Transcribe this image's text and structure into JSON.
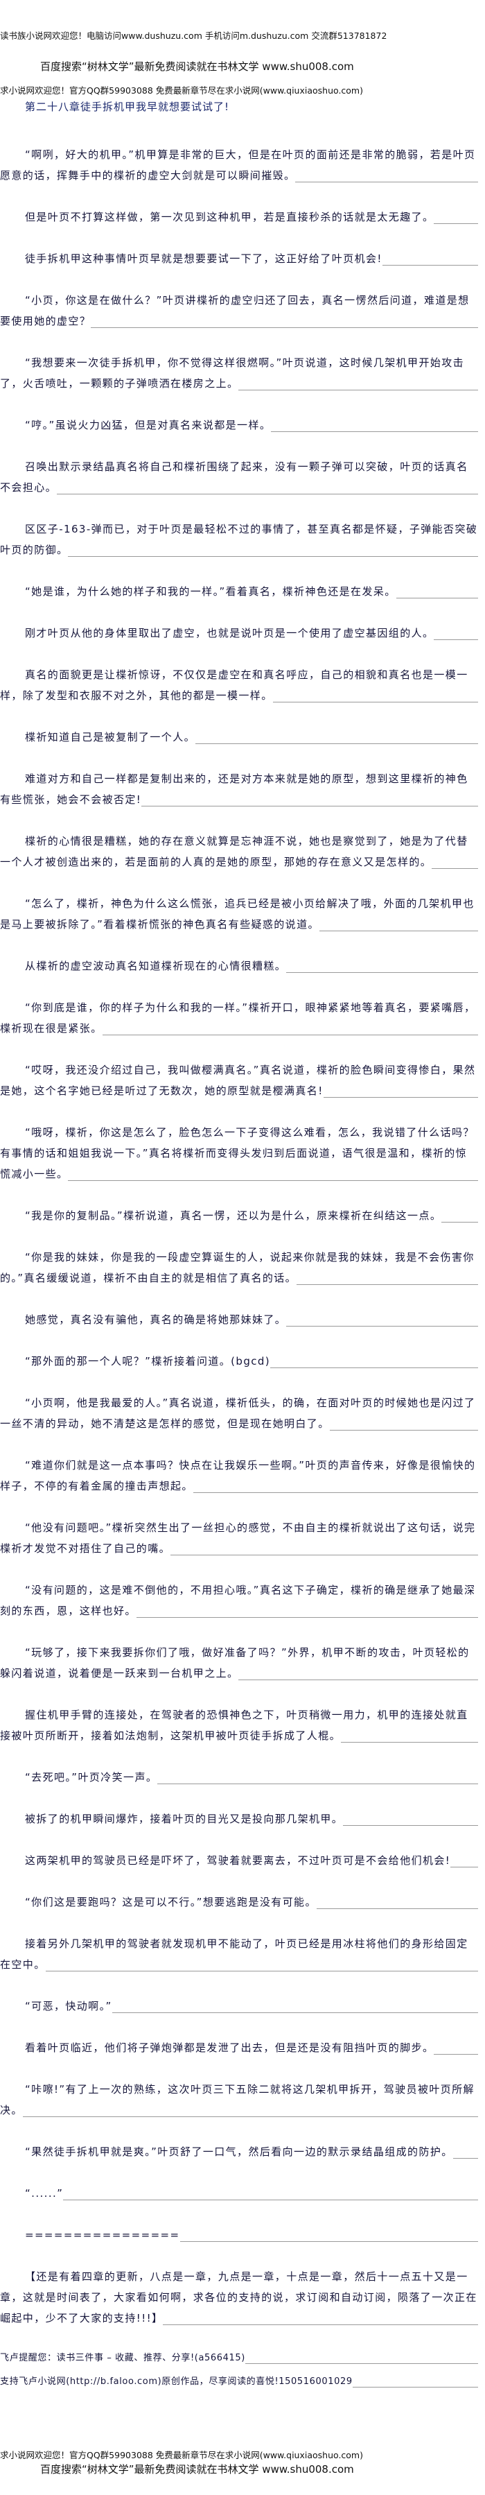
{
  "header": {
    "site_banner": "读书族小说网欢迎您！电脑访问www.dushuzu.com 手机访问m.dushuzu.com 交流群513781872",
    "search_banner": "百度搜索“树林文学”最新免费阅读就在书林文学 www.shu008.com",
    "qq_banner": "求小说网欢迎您！官方QQ群59903088 免费最新章节尽在求小说网(www.qiuxiaoshuo.com)"
  },
  "chapter_title": "第二十八章徒手拆机甲我早就想要试试了!",
  "paragraphs": [
    "“啊咧，好大的机甲。”机甲算是非常的巨大，但是在叶页的面前还是非常的脆弱，若是叶页愿意的话，挥舞手中的楪祈的虚空大剑就是可以瞬间摧毁。",
    "但是叶页不打算这样做，第一次见到这种机甲，若是直接秒杀的话就是太无趣了。",
    "徒手拆机甲这种事情叶页早就是想要要试一下了，这正好给了叶页机会!",
    "“小页，你这是在做什么？”叶页讲楪祈的虚空归还了回去，真名一愣然后问道，难道是想要使用她的虚空？",
    "“我想要来一次徒手拆机甲，你不觉得这样很燃啊。”叶页说道，这时候几架机甲开始攻击了，火舌喷吐，一颗颗的子弹喷洒在楼房之上。",
    "“哼。”虽说火力凶猛，但是对真名来说都是一样。",
    "召唤出默示录结晶真名将自己和楪祈围绕了起来，没有一颗子弹可以突破，叶页的话真名不会担心。",
    "区区子-163-弹而已，对于叶页是最轻松不过的事情了，甚至真名都是怀疑，子弹能否突破叶页的防御。",
    "“她是谁，为什么她的样子和我的一样。”看着真名，楪祈神色还是在发呆。",
    "刚才叶页从他的身体里取出了虚空，也就是说叶页是一个使用了虚空基因组的人。",
    "真名的面貌更是让楪祈惊讶，不仅仅是虚空在和真名呼应，自己的相貌和真名也是一模一样，除了发型和衣服不对之外，其他的都是一模一样。",
    "楪祈知道自己是被复制了一个人。",
    "难道对方和自己一样都是复制出来的，还是对方本来就是她的原型，想到这里楪祈的神色有些慌张，她会不会被否定!",
    "楪祈的心情很是糟糕，她的存在意义就算是忘神涯不说，她也是察觉到了，她是为了代替一个人才被创造出来的，若是面前的人真的是她的原型，那她的存在意义又是怎样的。",
    "“怎么了，楪祈，神色为什么这么慌张，追兵已经是被小页给解决了哦，外面的几架机甲也是马上要被拆除了。”看着楪祈慌张的神色真名有些疑惑的说道。",
    "从楪祈的虚空波动真名知道楪祈现在的心情很糟糕。",
    "“你到底是谁，你的样子为什么和我的一样。”楪祈开口，眼神紧紧地等着真名，要紧嘴唇，楪祈现在很是紧张。",
    "“哎呀，我还没介绍过自己，我叫做樱满真名。”真名说道，楪祈的脸色瞬间变得惨白，果然是她，这个名字她已经是听过了无数次，她的原型就是樱满真名!",
    "“哦呀，楪祈，你这是怎么了，脸色怎么一下子变得这么难看，怎么，我说错了什么话吗？有事情的话和姐姐我说一下。”真名将楪祈而变得头发归到后面说道，语气很是温和，楪祈的惊慌减小一些。",
    "“我是你的复制品。”楪祈说道，真名一愣，还以为是什么，原来楪祈在纠结这一点。",
    "“你是我的妹妹，你是我的一段虚空算诞生的人，说起来你就是我的妹妹，我是不会伤害你的。”真名缓缓说道，楪祈不由自主的就是相信了真名的话。",
    "她感觉，真名没有骗他，真名的确是将她那妹妹了。",
    "“那外面的那一个人呢？”楪祈接着问道。(bgcd)",
    "“小页啊，他是我最爱的人。”真名说道，楪祈低头，的确，在面对叶页的时候她也是闪过了一丝不清的异动，她不清楚这是怎样的感觉，但是现在她明白了。",
    "“难道你们就是这一点本事吗？快点在让我娱乐一些啊。”叶页的声音传来，好像是很愉快的样子，不停的有着金属的撞击声想起。",
    "“他没有问题吧。”楪祈突然生出了一丝担心的感觉，不由自主的楪祈就说出了这句话，说完楪祈才发觉不对捂住了自己的嘴。",
    "“没有问题的，这是难不倒他的，不用担心哦。”真名这下子确定，楪祈的确是继承了她最深刻的东西，恩，这样也好。",
    "“玩够了，接下来我要拆你们了哦，做好准备了吗？”外界，机甲不断的攻击，叶页轻松的躲闪着说道，说着便是一跃来到一台机甲之上。",
    "握住机甲手臂的连接处，在驾驶者的恐惧神色之下，叶页稍微一用力，机甲的连接处就直接被叶页所断开，接着如法炮制，这架机甲被叶页徒手拆成了人棍。",
    "“去死吧。”叶页冷笑一声。",
    "被拆了的机甲瞬间爆炸，接着叶页的目光又是投向那几架机甲。",
    "这两架机甲的驾驶员已经是吓坏了，驾驶着就要离去，不过叶页可是不会给他们机会!",
    "“你们这是要跑吗？这是可以不行。”想要逃跑是没有可能。",
    "接着另外几架机甲的驾驶者就发现机甲不能动了，叶页已经是用冰柱将他们的身形给固定在空中。",
    "“可恶，快动啊。”",
    "看着叶页临近，他们将子弹炮弹都是发泄了出去，但是还是没有阻挡叶页的脚步。",
    "“咔嚓!”有了上一次的熟练，这次叶页三下五除二就将这几架机甲拆开，驾驶员被叶页所解决。",
    "“果然徒手拆机甲就是爽。”叶页舒了一口气，然后看向一边的默示录结晶组成的防护。",
    "“......”",
    "================",
    "【还是有着四章的更新，八点是一章，九点是一章，十点是一章，然后十一点五十又是一章，这就是时间表了，大家看如何啊，求各位的支持的说，求订阅和自动订阅，陨落了一次正在崛起中，少不了大家的支持!!!】"
  ],
  "reminder": "飞卢提醒您：读书三件事 – 收藏、推荐、分享!(a566415)",
  "support": "支持飞卢小说网(http://b.faloo.com)原创作品，尽享阅读的喜悦!150516001029",
  "footer": {
    "qq_banner": "求小说网欢迎您！官方QQ群59903088 免费最新章节尽在求小说网(www.qiuxiaoshuo.com)",
    "search_banner": "百度搜索“树林文学”最新免费阅读就在书林文学 www.shu008.com"
  }
}
